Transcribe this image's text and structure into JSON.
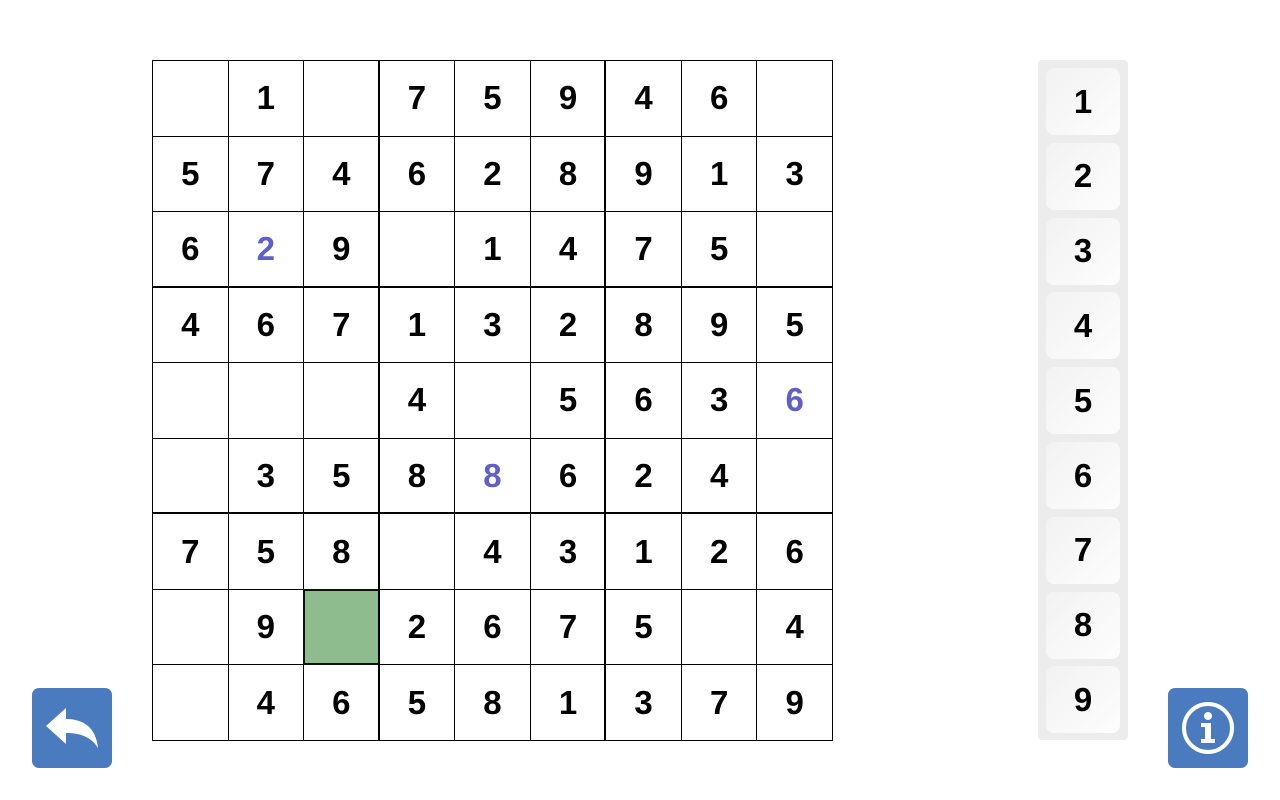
{
  "board": {
    "rows": [
      [
        "",
        "1",
        "",
        "7",
        "5",
        "9",
        "4",
        "6",
        ""
      ],
      [
        "5",
        "7",
        "4",
        "6",
        "2",
        "8",
        "9",
        "1",
        "3"
      ],
      [
        "6",
        "2",
        "9",
        "",
        "1",
        "4",
        "7",
        "5",
        ""
      ],
      [
        "4",
        "6",
        "7",
        "1",
        "3",
        "2",
        "8",
        "9",
        "5"
      ],
      [
        "",
        "",
        "",
        "4",
        "",
        "5",
        "6",
        "3",
        "6"
      ],
      [
        "",
        "3",
        "5",
        "8",
        "8",
        "6",
        "2",
        "4",
        ""
      ],
      [
        "7",
        "5",
        "8",
        "",
        "4",
        "3",
        "1",
        "2",
        "6"
      ],
      [
        "",
        "9",
        "",
        "2",
        "6",
        "7",
        "5",
        "",
        "4"
      ],
      [
        "",
        "4",
        "6",
        "5",
        "8",
        "1",
        "3",
        "7",
        "9"
      ]
    ],
    "user_entries": [
      [
        2,
        1
      ],
      [
        4,
        8
      ],
      [
        5,
        4
      ]
    ],
    "selected": [
      7,
      2
    ],
    "colors": {
      "user_digit": "#5f5fc6",
      "selected_cell": "#8fbc8f",
      "given_digit": "#000000"
    }
  },
  "numpad": {
    "digits": [
      "1",
      "2",
      "3",
      "4",
      "5",
      "6",
      "7",
      "8",
      "9"
    ]
  },
  "buttons": {
    "undo": {
      "icon": "undo-arrow-icon",
      "color": "#4a7bbf"
    },
    "info": {
      "icon": "info-icon",
      "color": "#4a7bbf"
    }
  }
}
